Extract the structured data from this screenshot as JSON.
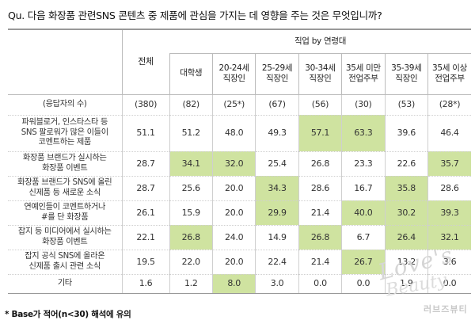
{
  "question": "Qu. 다음 화장품 관련SNS 콘텐츠 중 제품에 관심을 가지는 데 영향을 주는 것은 무엇입니까?",
  "header": {
    "total": "전체",
    "group": "직업 by 연령대",
    "columns": [
      {
        "line1": "대학생",
        "line2": ""
      },
      {
        "line1": "20-24세",
        "line2": "직장인"
      },
      {
        "line1": "25-29세",
        "line2": "직장인"
      },
      {
        "line1": "30-34세",
        "line2": "직장인"
      },
      {
        "line1": "35세 미만",
        "line2": "전업주부"
      },
      {
        "line1": "35-39세",
        "line2": "직장인"
      },
      {
        "line1": "35세 이상",
        "line2": "전업주부"
      }
    ]
  },
  "base_row": {
    "label": "(응답자의 수)",
    "total": "(380)",
    "values": [
      "(82)",
      "(25*)",
      "(67)",
      "(56)",
      "(30)",
      "(53)",
      "(28*)"
    ]
  },
  "rows": [
    {
      "label_lines": [
        "파워블로거, 인스타스타 등",
        "SNS 팔로워가 많은 이들이",
        "코멘트하는 제품"
      ],
      "total": "51.1",
      "values": [
        "51.2",
        "48.0",
        "49.3",
        "57.1",
        "63.3",
        "39.6",
        "46.4"
      ],
      "highlight": [
        false,
        false,
        false,
        true,
        true,
        false,
        false
      ]
    },
    {
      "label_lines": [
        "화장품 브랜드가 실시하는",
        "화장품 이벤트"
      ],
      "total": "28.7",
      "values": [
        "34.1",
        "32.0",
        "25.4",
        "26.8",
        "23.3",
        "22.6",
        "35.7"
      ],
      "highlight": [
        true,
        true,
        false,
        false,
        false,
        false,
        true
      ]
    },
    {
      "label_lines": [
        "화장품 브랜드가 SNS에 올린",
        "신제품 등 새로운 소식"
      ],
      "total": "28.7",
      "values": [
        "25.6",
        "20.0",
        "34.3",
        "28.6",
        "16.7",
        "35.8",
        "28.6"
      ],
      "highlight": [
        false,
        false,
        true,
        false,
        false,
        true,
        false
      ]
    },
    {
      "label_lines": [
        "연예인들이 코멘트하거나",
        "#를 단 화장품"
      ],
      "total": "26.1",
      "values": [
        "15.9",
        "20.0",
        "29.9",
        "21.4",
        "40.0",
        "30.2",
        "39.3"
      ],
      "highlight": [
        false,
        false,
        true,
        false,
        true,
        true,
        true
      ]
    },
    {
      "label_lines": [
        "잡지 등 미디어에서 실시하는",
        "화장품 이벤트"
      ],
      "total": "22.1",
      "values": [
        "26.8",
        "24.0",
        "14.9",
        "26.8",
        "6.7",
        "26.4",
        "32.1"
      ],
      "highlight": [
        true,
        false,
        false,
        true,
        false,
        true,
        true
      ]
    },
    {
      "label_lines": [
        "잡지 공식 SNS에 올라온",
        "신제품 출시 관련 소식"
      ],
      "total": "19.5",
      "values": [
        "22.0",
        "20.0",
        "22.4",
        "21.4",
        "26.7",
        "13.2",
        "3.6"
      ],
      "highlight": [
        false,
        false,
        false,
        false,
        true,
        false,
        false
      ]
    },
    {
      "label_lines": [
        "기타"
      ],
      "total": "1.6",
      "values": [
        "1.2",
        "8.0",
        "3.0",
        "0.0",
        "0.0",
        "1.9",
        "0.0"
      ],
      "highlight": [
        false,
        true,
        false,
        false,
        false,
        false,
        false
      ]
    }
  ],
  "footnote": "* Base가 적어(n<30) 해석에 유의",
  "watermark": {
    "line1": "Love's",
    "line2": "Beauty",
    "line3": "러브즈뷰티"
  },
  "colors": {
    "highlight": "#cfe3a0",
    "rule": "#999999"
  }
}
